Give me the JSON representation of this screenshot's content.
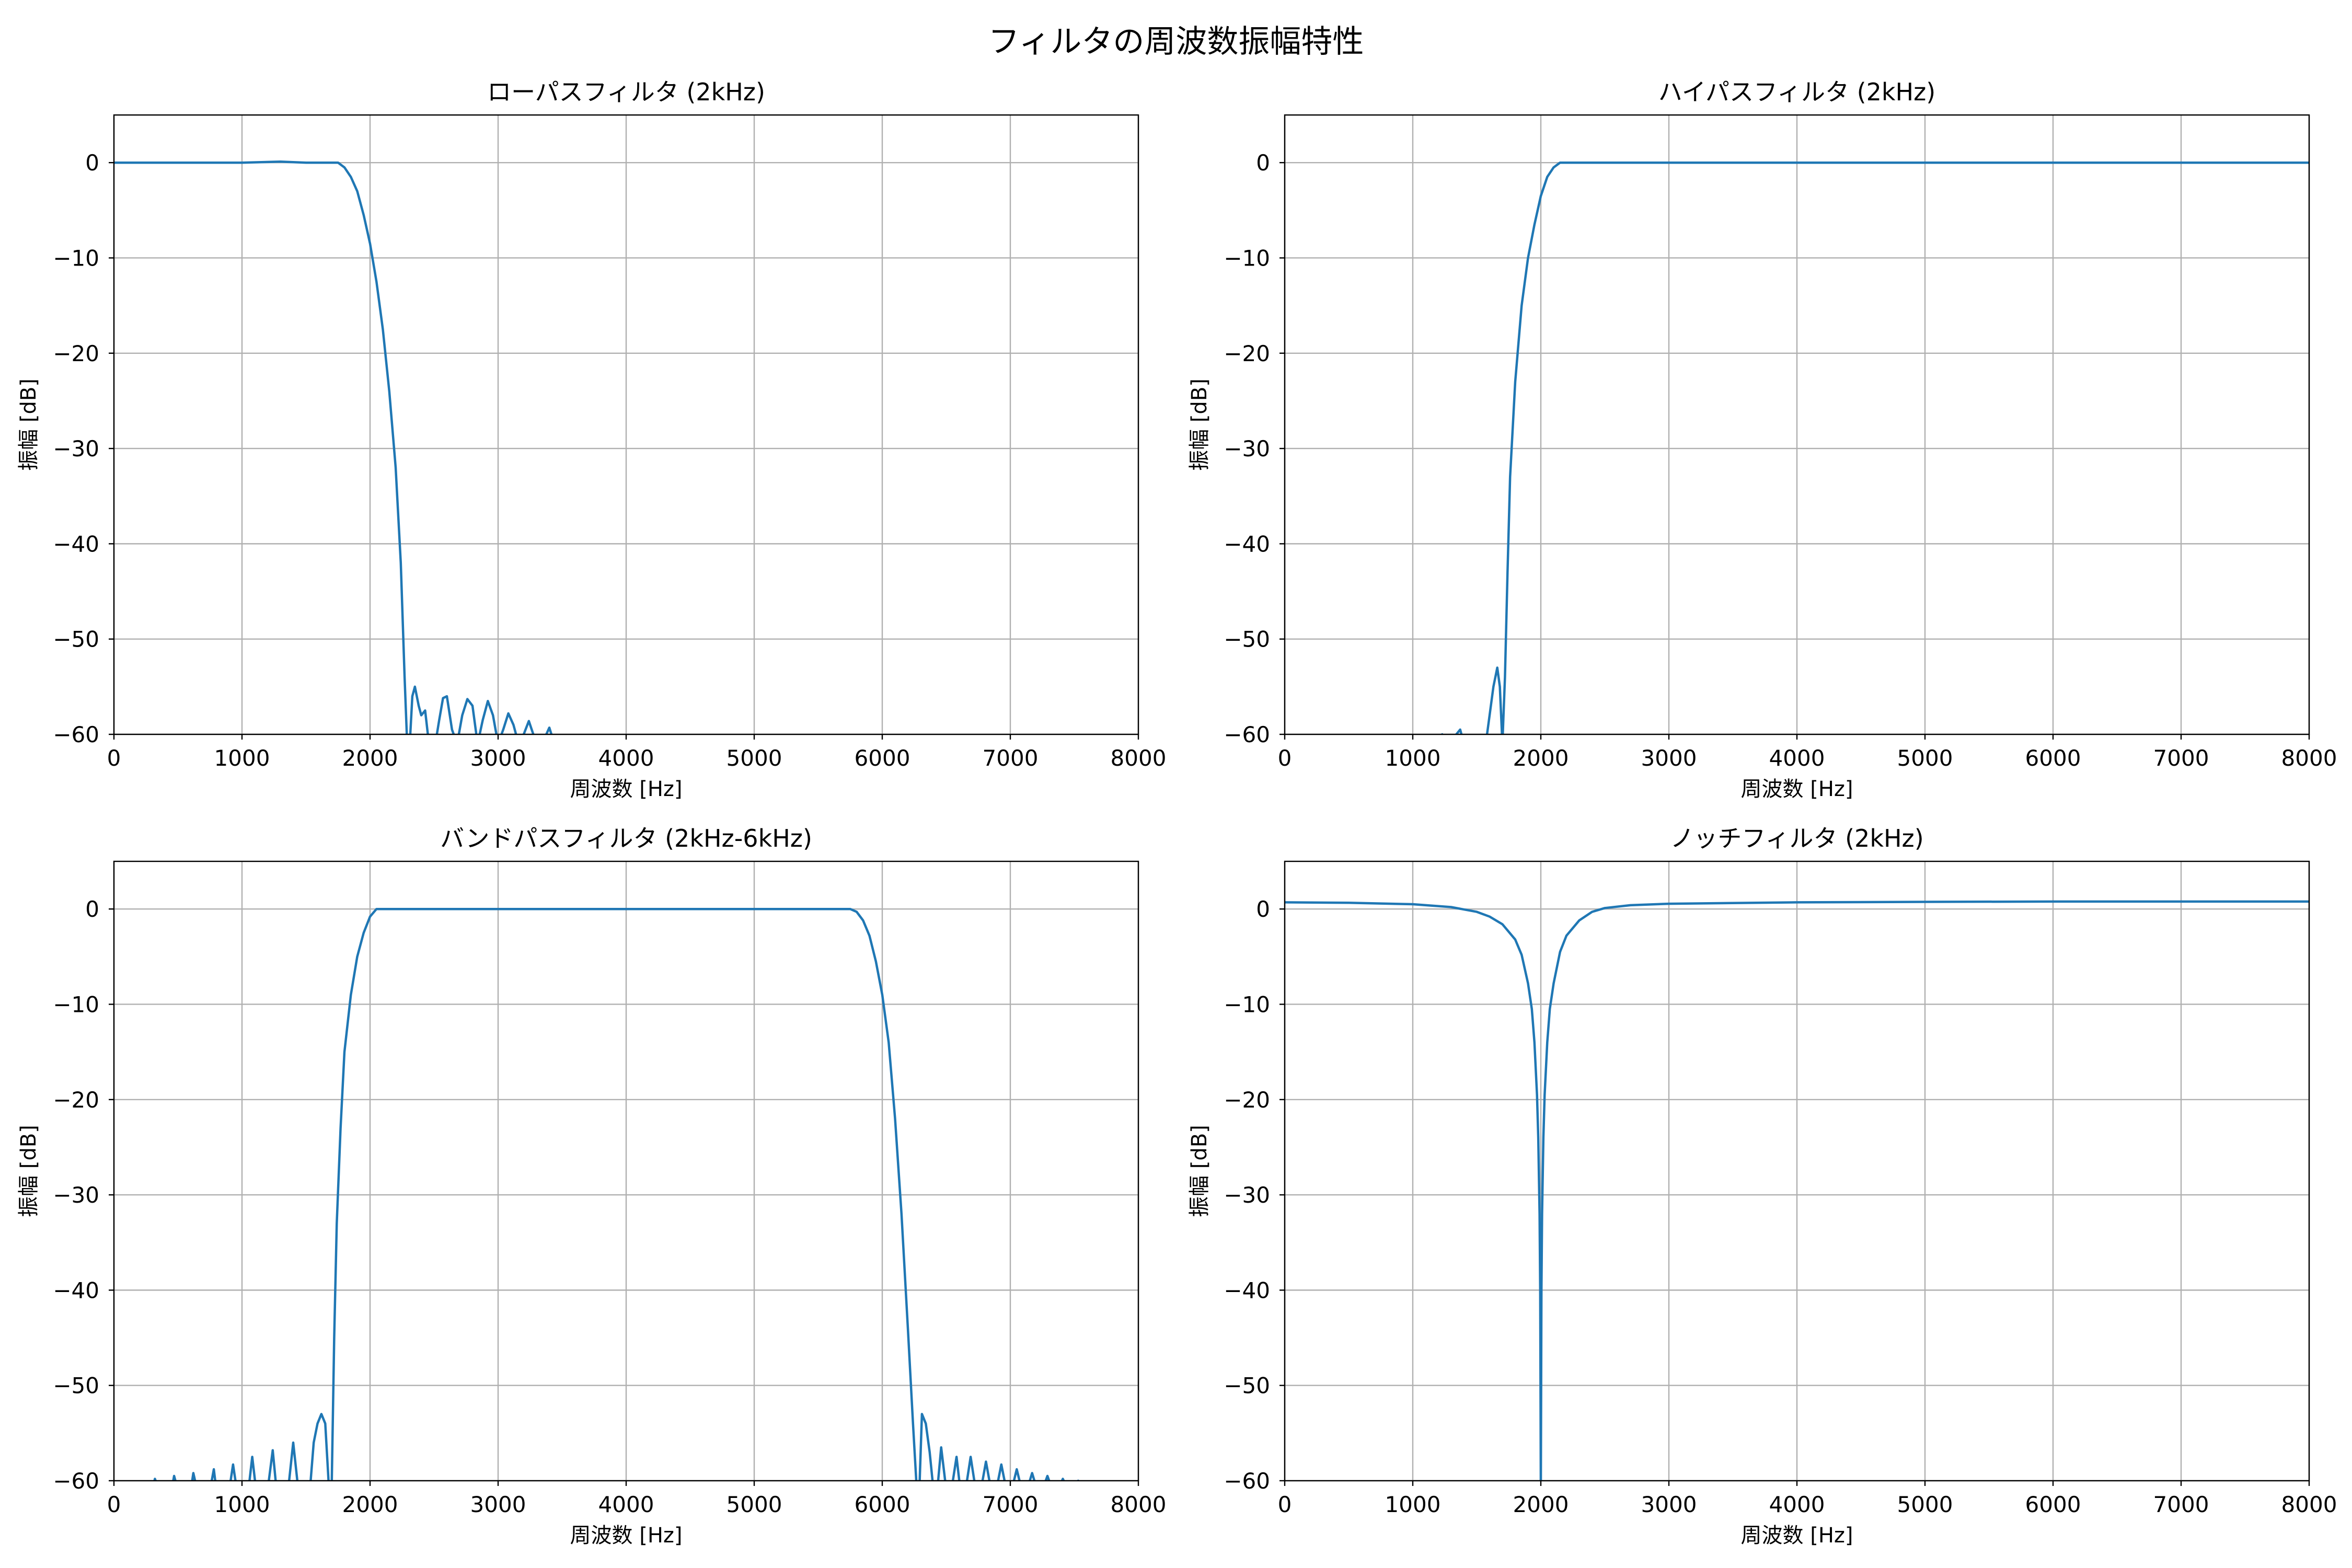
{
  "figure": {
    "suptitle": "フィルタの周波数振幅特性"
  },
  "chart_data": [
    {
      "type": "line",
      "title": "ローパスフィルタ (2kHz)",
      "xlabel": "周波数 [Hz]",
      "ylabel": "振幅 [dB]",
      "xlim": [
        0,
        8000
      ],
      "ylim": [
        -60,
        5
      ],
      "xticks": [
        0,
        1000,
        2000,
        3000,
        4000,
        5000,
        6000,
        7000,
        8000
      ],
      "yticks": [
        0,
        -10,
        -20,
        -30,
        -40,
        -50,
        -60
      ],
      "ytick_labels": [
        "0",
        "−10",
        "−20",
        "−30",
        "−40",
        "−50",
        "−60"
      ],
      "grid": true,
      "series": [
        {
          "color": "#1f77b4",
          "x": [
            0,
            500,
            1000,
            1300,
            1500,
            1650,
            1750,
            1800,
            1850,
            1900,
            1950,
            2000,
            2050,
            2100,
            2150,
            2200,
            2240,
            2270,
            2290,
            2300,
            2310,
            2330,
            2350,
            2380,
            2400,
            2430,
            2460,
            2490,
            2510,
            2540,
            2570,
            2600,
            2640,
            2680,
            2720,
            2760,
            2800,
            2840,
            2880,
            2920,
            2960,
            3000,
            3040,
            3080,
            3120,
            3160,
            3200,
            3240,
            3280,
            3320,
            3360,
            3400,
            3440,
            3480,
            3520,
            3560
          ],
          "y": [
            0,
            0,
            0,
            0.1,
            0,
            0,
            0,
            -0.5,
            -1.5,
            -3,
            -5.5,
            -8.5,
            -12.5,
            -17.5,
            -24,
            -32,
            -42,
            -54,
            -61,
            -61,
            -61,
            -56,
            -55,
            -57,
            -58,
            -57.5,
            -61,
            -61,
            -61,
            -58.5,
            -56.2,
            -56,
            -59.5,
            -61,
            -58,
            -56.3,
            -57,
            -61,
            -58.5,
            -56.5,
            -58,
            -61,
            -59.5,
            -57.8,
            -59,
            -61,
            -60,
            -58.6,
            -60.2,
            -61,
            -60.5,
            -59.3,
            -61,
            -61,
            -60.2,
            -61
          ]
        }
      ]
    },
    {
      "type": "line",
      "title": "ハイパスフィルタ (2kHz)",
      "xlabel": "周波数 [Hz]",
      "ylabel": "振幅 [dB]",
      "xlim": [
        0,
        8000
      ],
      "ylim": [
        -60,
        5
      ],
      "xticks": [
        0,
        1000,
        2000,
        3000,
        4000,
        5000,
        6000,
        7000,
        8000
      ],
      "yticks": [
        0,
        -10,
        -20,
        -30,
        -40,
        -50,
        -60
      ],
      "ytick_labels": [
        "0",
        "−10",
        "−20",
        "−30",
        "−40",
        "−50",
        "−60"
      ],
      "grid": true,
      "series": [
        {
          "color": "#1f77b4",
          "x": [
            1200,
            1230,
            1260,
            1300,
            1340,
            1370,
            1400,
            1450,
            1500,
            1550,
            1580,
            1600,
            1630,
            1660,
            1680,
            1700,
            1720,
            1740,
            1760,
            1800,
            1850,
            1900,
            1950,
            2000,
            2050,
            2100,
            2150,
            2200,
            2250,
            2300,
            3000,
            4000,
            5000,
            6000,
            7000,
            8000
          ],
          "y": [
            -61,
            -60,
            -61,
            -61,
            -60,
            -59.5,
            -61,
            -61,
            -61,
            -61,
            -60,
            -58,
            -55,
            -53,
            -55,
            -61,
            -54,
            -43,
            -33,
            -23,
            -15,
            -10,
            -6.5,
            -3.5,
            -1.5,
            -0.5,
            0,
            0,
            0,
            0,
            0,
            0,
            0,
            0,
            0,
            0
          ]
        }
      ]
    },
    {
      "type": "line",
      "title": "バンドパスフィルタ (2kHz-6kHz)",
      "xlabel": "周波数 [Hz]",
      "ylabel": "振幅 [dB]",
      "xlim": [
        0,
        8000
      ],
      "ylim": [
        -60,
        5
      ],
      "xticks": [
        0,
        1000,
        2000,
        3000,
        4000,
        5000,
        6000,
        7000,
        8000
      ],
      "yticks": [
        0,
        -10,
        -20,
        -30,
        -40,
        -50,
        -60
      ],
      "ytick_labels": [
        "0",
        "−10",
        "−20",
        "−30",
        "−40",
        "−50",
        "−60"
      ],
      "grid": true,
      "series": [
        {
          "color": "#1f77b4",
          "x": [
            300,
            320,
            350,
            450,
            470,
            500,
            600,
            620,
            650,
            750,
            780,
            800,
            900,
            930,
            960,
            1050,
            1080,
            1110,
            1200,
            1240,
            1270,
            1360,
            1400,
            1440,
            1530,
            1560,
            1590,
            1620,
            1650,
            1680,
            1700,
            1720,
            1740,
            1770,
            1800,
            1850,
            1900,
            1950,
            2000,
            2050,
            2100,
            2150,
            2200,
            2250,
            2300,
            3000,
            4000,
            5000,
            5700,
            5750,
            5800,
            5850,
            5900,
            5950,
            6000,
            6050,
            6100,
            6150,
            6200,
            6240,
            6270,
            6290,
            6310,
            6340,
            6370,
            6400,
            6430,
            6460,
            6500,
            6540,
            6580,
            6610,
            6650,
            6690,
            6730,
            6770,
            6810,
            6850,
            6890,
            6930,
            6970,
            7010,
            7050,
            7090,
            7130,
            7170,
            7210,
            7250,
            7290,
            7330,
            7370,
            7410,
            7450,
            7490,
            7530,
            7570,
            7610,
            7650,
            7690,
            7730
          ],
          "y": [
            -61,
            -59.8,
            -61,
            -61,
            -59.5,
            -61,
            -61,
            -59.2,
            -61,
            -61,
            -58.8,
            -61,
            -61,
            -58.3,
            -61,
            -61,
            -57.5,
            -61,
            -61,
            -56.8,
            -61,
            -61,
            -56,
            -61,
            -61,
            -56,
            -54,
            -53,
            -54,
            -61,
            -61,
            -45,
            -33,
            -23,
            -15,
            -9,
            -5,
            -2.5,
            -0.8,
            0,
            0,
            0,
            0,
            0,
            0,
            0,
            0,
            0,
            0,
            0,
            -0.3,
            -1.2,
            -2.8,
            -5.5,
            -9,
            -14,
            -22,
            -32,
            -44,
            -54,
            -61,
            -61,
            -53,
            -54,
            -57,
            -61,
            -61,
            -56.5,
            -61,
            -61,
            -57.5,
            -61,
            -61,
            -57.5,
            -61,
            -61,
            -58,
            -61,
            -61,
            -58.3,
            -61,
            -61,
            -58.8,
            -61,
            -61,
            -59.2,
            -61,
            -61,
            -59.5,
            -61,
            -61,
            -59.8,
            -61,
            -61,
            -60,
            -61,
            -61,
            -60.2,
            -61,
            -61
          ]
        }
      ]
    },
    {
      "type": "line",
      "title": "ノッチフィルタ (2kHz)",
      "xlabel": "周波数 [Hz]",
      "ylabel": "振幅 [dB]",
      "xlim": [
        0,
        8000
      ],
      "ylim": [
        -60,
        5
      ],
      "xticks": [
        0,
        1000,
        2000,
        3000,
        4000,
        5000,
        6000,
        7000,
        8000
      ],
      "yticks": [
        0,
        -10,
        -20,
        -30,
        -40,
        -50,
        -60
      ],
      "ytick_labels": [
        "0",
        "−10",
        "−20",
        "−30",
        "−40",
        "−50",
        "−60"
      ],
      "grid": true,
      "series": [
        {
          "color": "#1f77b4",
          "x": [
            0,
            500,
            1000,
            1300,
            1500,
            1600,
            1700,
            1800,
            1850,
            1900,
            1930,
            1950,
            1970,
            1980,
            1990,
            1995,
            2000,
            2005,
            2010,
            2020,
            2030,
            2050,
            2070,
            2100,
            2150,
            2200,
            2300,
            2400,
            2500,
            2700,
            3000,
            4000,
            5000,
            6000,
            7000,
            8000
          ],
          "y": [
            0.7,
            0.65,
            0.5,
            0.2,
            -0.3,
            -0.8,
            -1.6,
            -3.2,
            -4.8,
            -7.8,
            -10.5,
            -14,
            -19.5,
            -24,
            -32,
            -40,
            -61,
            -40,
            -32,
            -24,
            -19.5,
            -14,
            -10.5,
            -7.8,
            -4.5,
            -2.8,
            -1.2,
            -0.3,
            0.1,
            0.4,
            0.55,
            0.7,
            0.75,
            0.78,
            0.78,
            0.78
          ]
        }
      ]
    }
  ]
}
